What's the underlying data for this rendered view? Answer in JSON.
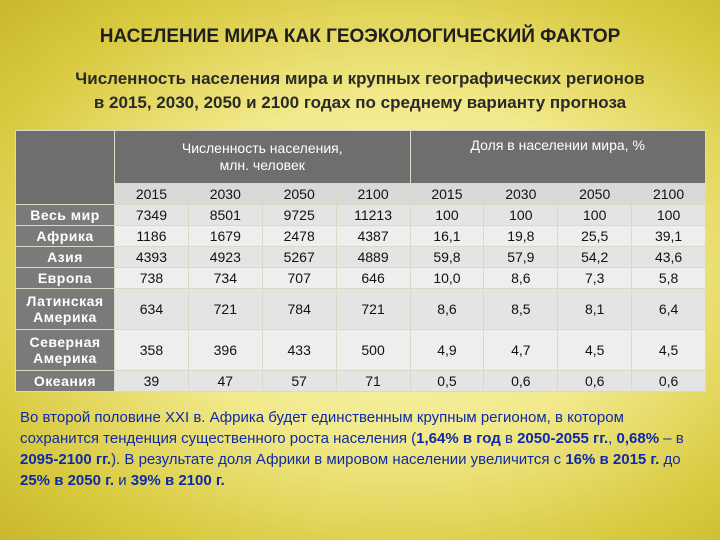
{
  "title": "НАСЕЛЕНИЕ МИРА КАК ГЕОЭКОЛОГИЧЕСКИЙ ФАКТОР",
  "subtitle_line1": "Численность населения мира и крупных географических регионов",
  "subtitle_line2": "в 2015, 2030, 2050 и 2100 годах по среднему варианту прогноза",
  "table": {
    "group1_line1": "Численность населения,",
    "group1_line2": "млн. человек",
    "group2": "Доля в населении мира, %",
    "years": [
      "2015",
      "2030",
      "2050",
      "2100",
      "2015",
      "2030",
      "2050",
      "2100"
    ],
    "rows": [
      {
        "region": [
          "Весь мир"
        ],
        "values": [
          "7349",
          "8501",
          "9725",
          "11213",
          "100",
          "100",
          "100",
          "100"
        ]
      },
      {
        "region": [
          "Африка"
        ],
        "values": [
          "1186",
          "1679",
          "2478",
          "4387",
          "16,1",
          "19,8",
          "25,5",
          "39,1"
        ]
      },
      {
        "region": [
          "Азия"
        ],
        "values": [
          "4393",
          "4923",
          "5267",
          "4889",
          "59,8",
          "57,9",
          "54,2",
          "43,6"
        ]
      },
      {
        "region": [
          "Европа"
        ],
        "values": [
          "738",
          "734",
          "707",
          "646",
          "10,0",
          "8,6",
          "7,3",
          "5,8"
        ]
      },
      {
        "region": [
          "Латинская",
          "Америка"
        ],
        "values": [
          "634",
          "721",
          "784",
          "721",
          "8,6",
          "8,5",
          "8,1",
          "6,4"
        ]
      },
      {
        "region": [
          "Северная",
          "Америка"
        ],
        "values": [
          "358",
          "396",
          "433",
          "500",
          "4,9",
          "4,7",
          "4,5",
          "4,5"
        ]
      },
      {
        "region": [
          "Океания"
        ],
        "values": [
          "39",
          "47",
          "57",
          "71",
          "0,5",
          "0,6",
          "0,6",
          "0,6"
        ]
      }
    ]
  },
  "note": {
    "p1": "Во второй половине XXI в. Африка будет единственным крупным регионом, в котором сохранится тенденция существенного роста населения (",
    "b1": "1,64% в год",
    "p2": " в ",
    "b2": "2050-2055 гг.",
    "p3": ", ",
    "b3": "0,68%",
    "p4": " – в ",
    "b4": "2095-2100 гг.",
    "p5": "). В результате доля Африки в мировом населении увеличится с ",
    "b5": "16% в 2015 г.",
    "p6": " до ",
    "b6": "25% в 2050 г.",
    "p7": " и ",
    "b7": "39% в 2100 г."
  },
  "colors": {
    "note_text": "#0f2aa8",
    "header_bg": "#6e6e6e",
    "region_bg": "#7a7a7a",
    "cell_bg": "#e4e4e4"
  }
}
